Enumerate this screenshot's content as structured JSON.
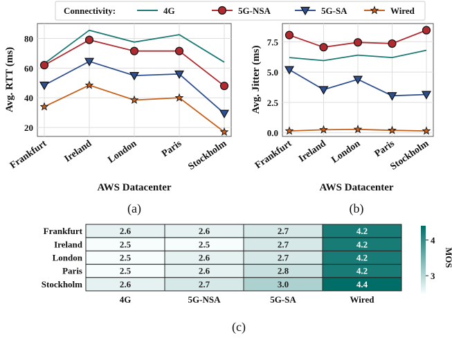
{
  "legend": {
    "title": "Connectivity:"
  },
  "colors": {
    "4G": "#1a7a73",
    "5G-NSA": "#b02a30",
    "5G-SA": "#2e4f8f",
    "Wired": "#c8601a"
  },
  "chart_data": [
    {
      "id": "a",
      "type": "line",
      "label": "(a)",
      "categories": [
        "Frankfurt",
        "Ireland",
        "London",
        "Paris",
        "Stockholm"
      ],
      "xlabel": "AWS Datacenter",
      "ylabel": "Avg. RTT (ms)",
      "ylim": [
        14,
        90
      ],
      "yticks": [
        20,
        40,
        60,
        80
      ],
      "grid": true,
      "series": [
        {
          "name": "4G",
          "marker": "none",
          "values": [
            63,
            85.5,
            77.5,
            82.5,
            64
          ]
        },
        {
          "name": "5G-NSA",
          "marker": "circle",
          "values": [
            62,
            79,
            71.5,
            71.5,
            48
          ]
        },
        {
          "name": "5G-SA",
          "marker": "triangle",
          "values": [
            48.5,
            64.5,
            55,
            56,
            29.5
          ]
        },
        {
          "name": "Wired",
          "marker": "star",
          "values": [
            34,
            48.5,
            38.5,
            40,
            17
          ]
        }
      ]
    },
    {
      "id": "b",
      "type": "line",
      "label": "(b)",
      "categories": [
        "Frankfurt",
        "Ireland",
        "London",
        "Paris",
        "Stockholm"
      ],
      "xlabel": "AWS Datacenter",
      "ylabel": "Avg. Jitter (ms)",
      "ylim": [
        -0.3,
        9.0
      ],
      "yticks": [
        0.0,
        2.5,
        5.0,
        7.5
      ],
      "ytick_labels": [
        "0.0",
        "2.5",
        "5.0",
        "7.5"
      ],
      "grid": true,
      "series": [
        {
          "name": "4G",
          "marker": "none",
          "values": [
            6.2,
            5.95,
            6.4,
            6.2,
            6.8
          ]
        },
        {
          "name": "5G-NSA",
          "marker": "circle",
          "values": [
            8.05,
            7.05,
            7.45,
            7.35,
            8.45
          ]
        },
        {
          "name": "5G-SA",
          "marker": "triangle",
          "values": [
            5.2,
            3.55,
            4.4,
            3.05,
            3.15
          ]
        },
        {
          "name": "Wired",
          "marker": "star",
          "values": [
            0.15,
            0.25,
            0.28,
            0.2,
            0.15
          ]
        }
      ]
    },
    {
      "id": "c",
      "type": "heatmap",
      "label": "(c)",
      "rows": [
        "Frankfurt",
        "Ireland",
        "London",
        "Paris",
        "Stockholm"
      ],
      "columns": [
        "4G",
        "5G-NSA",
        "5G-SA",
        "Wired"
      ],
      "values": [
        [
          2.6,
          2.6,
          2.7,
          4.2
        ],
        [
          2.5,
          2.5,
          2.7,
          4.2
        ],
        [
          2.5,
          2.6,
          2.7,
          4.2
        ],
        [
          2.5,
          2.6,
          2.8,
          4.2
        ],
        [
          2.6,
          2.7,
          3.0,
          4.4
        ]
      ],
      "value_labels": [
        [
          "2.6",
          "2.6",
          "2.7",
          "4.2"
        ],
        [
          "2.5",
          "2.5",
          "2.7",
          "4.2"
        ],
        [
          "2.5",
          "2.6",
          "2.7",
          "4.2"
        ],
        [
          "2.5",
          "2.6",
          "2.8",
          "4.2"
        ],
        [
          "2.6",
          "2.7",
          "3.0",
          "4.4"
        ]
      ],
      "colorbar": {
        "label": "MOS",
        "range": [
          2.5,
          4.4
        ],
        "ticks": [
          3,
          4
        ]
      }
    }
  ]
}
